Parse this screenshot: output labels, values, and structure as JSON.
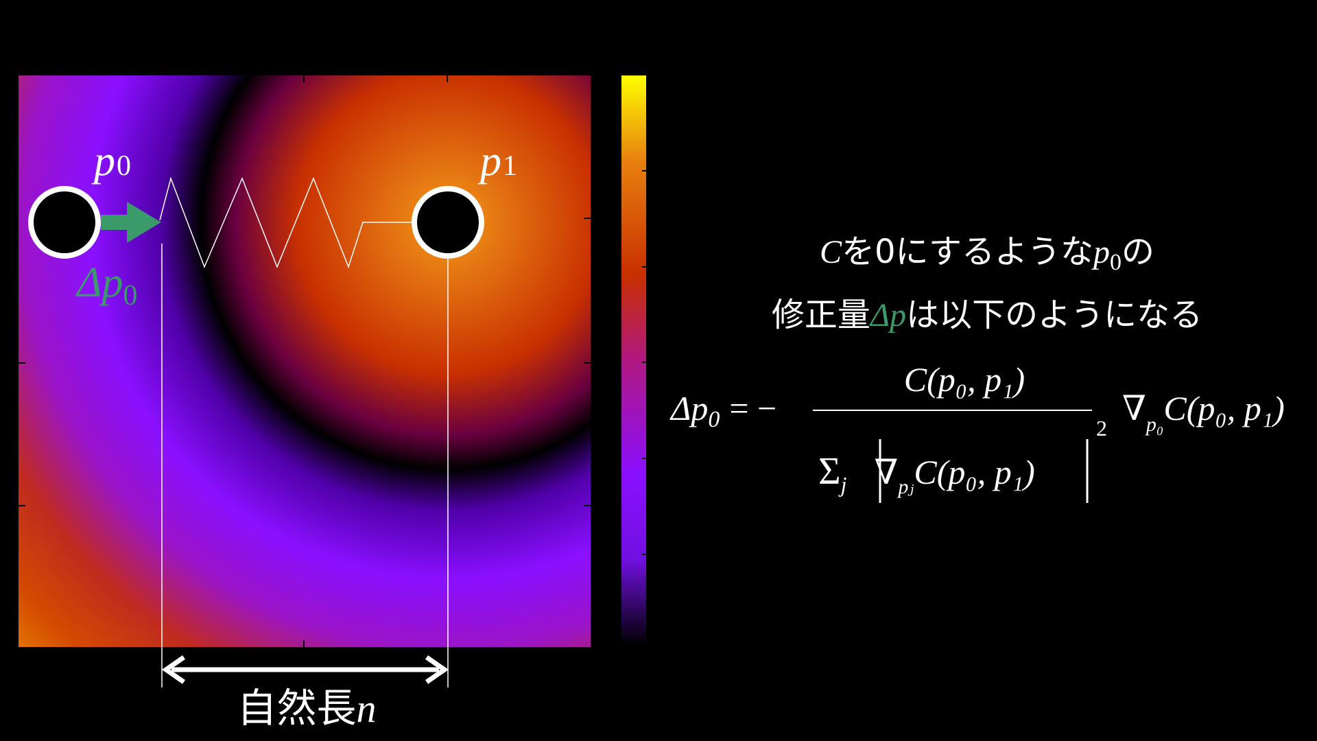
{
  "diagram": {
    "point_labels": [
      {
        "symbol": "p",
        "subscript": "0"
      },
      {
        "symbol": "p",
        "subscript": "1"
      }
    ],
    "delta_label": {
      "symbol": "Δp",
      "subscript": "0"
    },
    "length_label": {
      "text": "自然長",
      "variable": "n"
    }
  },
  "explanation": {
    "line1": {
      "variable": "C",
      "text": "を0にするような",
      "variable2": "p",
      "subscript": "0",
      "text2": "の"
    },
    "line2": {
      "text": "修正量",
      "highlight": "Δp",
      "text2": "は以下のようになる"
    }
  },
  "formula": {
    "lhs": "Δp",
    "lhs_sub": "0",
    "equals": "= −",
    "numerator": "C(p₀, p₁)",
    "sum": "Σ",
    "sum_index": "j",
    "denominator_grad": "∇",
    "denominator_grad_sub": "pⱼ",
    "denominator_term": "C(p₀, p₁)",
    "power": "2",
    "grad": "∇",
    "grad_sub": "p₀",
    "term": "C(p₀, p₁)"
  }
}
